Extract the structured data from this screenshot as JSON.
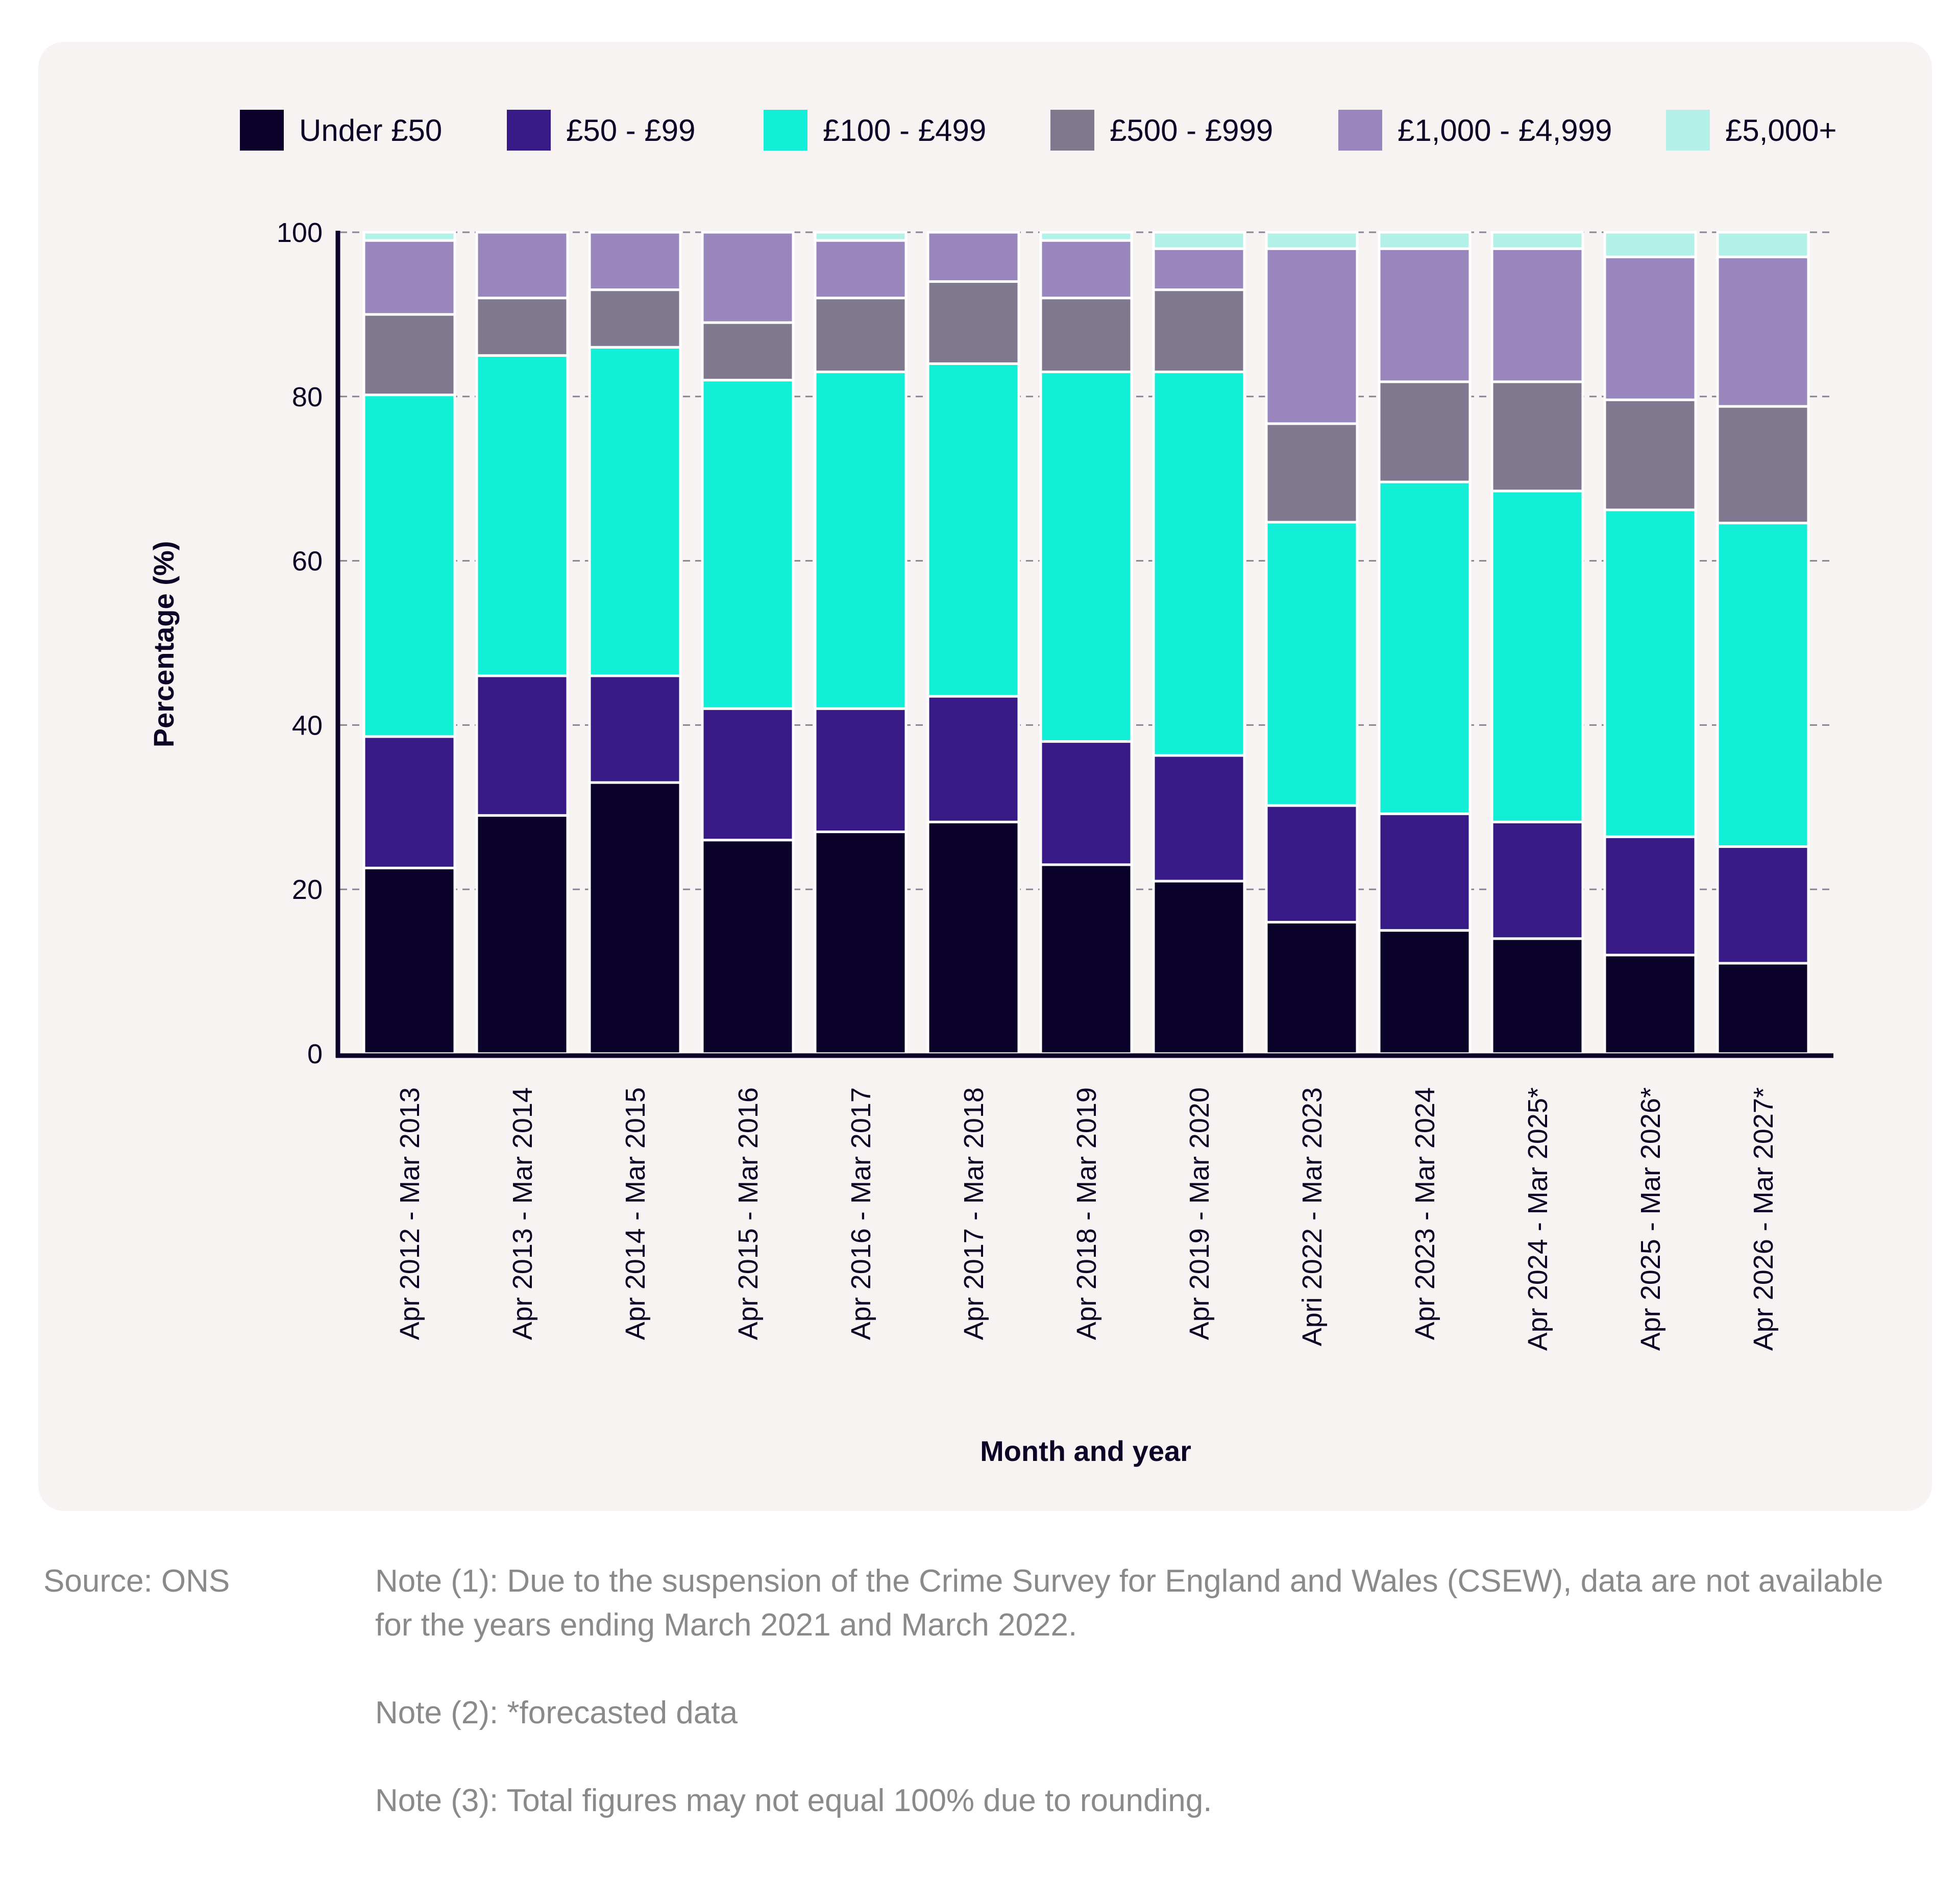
{
  "chart_data": {
    "type": "bar",
    "stacked": true,
    "title": "",
    "xlabel": "Month and year",
    "ylabel": "Percentage (%)",
    "ylim": [
      0,
      100
    ],
    "yticks": [
      0,
      20,
      40,
      60,
      80,
      100
    ],
    "grid": true,
    "legend_position": "top",
    "categories": [
      "Apr 2012 - Mar 2013",
      "Apr 2013 - Mar 2014",
      "Apr 2014 - Mar 2015",
      "Apr 2015 - Mar 2016",
      "Apr 2016 - Mar 2017",
      "Apr 2017 - Mar 2018",
      "Apr 2018 - Mar 2019",
      "Apr 2019 - Mar 2020",
      "Apri 2022 - Mar 2023",
      "Apr 2023 - Mar 2024",
      "Apr 2024 - Mar 2025*",
      "Apr 2025 - Mar 2026*",
      "Apr 2026 - Mar 2027*"
    ],
    "series": [
      {
        "name": "Under £50",
        "color": "#0a0229",
        "values": [
          22.6,
          29,
          33,
          26,
          27,
          28.2,
          23,
          21,
          16,
          15,
          14,
          12,
          11
        ]
      },
      {
        "name": "£50 - £99",
        "color": "#371a85",
        "values": [
          16,
          17,
          13,
          16,
          15,
          15.3,
          15,
          15.3,
          14.2,
          14.2,
          14.2,
          14.4,
          14.2
        ]
      },
      {
        "name": "£100 - £499",
        "color": "#12efd6",
        "values": [
          41.6,
          39,
          40,
          40,
          41,
          40.5,
          45,
          46.7,
          34.5,
          40.4,
          40.3,
          39.8,
          39.4
        ]
      },
      {
        "name": "£500 - £999",
        "color": "#80788f",
        "values": [
          9.8,
          7,
          7,
          7,
          9,
          10,
          9,
          10,
          12,
          12.2,
          13.3,
          13.4,
          14.2
        ]
      },
      {
        "name": "£1,000 - £4,999",
        "color": "#9986bd",
        "values": [
          9,
          8,
          7,
          11,
          7,
          6,
          7,
          5,
          21.3,
          16.2,
          16.2,
          17.4,
          18.2
        ]
      },
      {
        "name": "£5,000+",
        "color": "#b3f0e8",
        "values": [
          1,
          0,
          0,
          0,
          1,
          0,
          1,
          2,
          2,
          2,
          2,
          3,
          3
        ]
      }
    ]
  },
  "legend": [
    {
      "label": "Under £50",
      "color": "#0a0229"
    },
    {
      "label": "£50 - £99",
      "color": "#371a85"
    },
    {
      "label": "£100 - £499",
      "color": "#12efd6"
    },
    {
      "label": "£500 - £999",
      "color": "#80788f"
    },
    {
      "label": "£1,000 - £4,999",
      "color": "#9986bd"
    },
    {
      "label": "£5,000+",
      "color": "#b3f0e8"
    }
  ],
  "footer": {
    "source": "Source: ONS",
    "notes": [
      "Note (1): Due to the suspension of the Crime Survey for England and Wales (CSEW), data are not available for the years ending March 2021 and March 2022.",
      "Note (2): *forecasted data",
      "Note (3): Total figures may not equal 100% due to rounding."
    ]
  }
}
